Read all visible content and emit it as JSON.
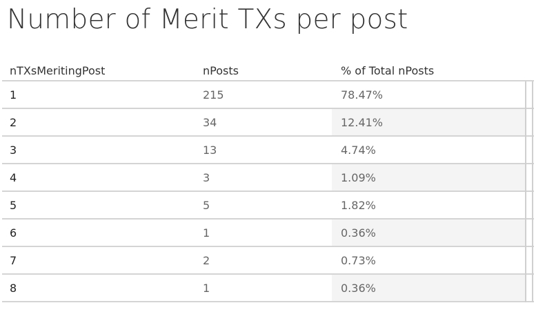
{
  "title": "Number of Merit TXs per post",
  "chart_data": {
    "type": "table",
    "title": "Number of Merit TXs per post",
    "columns": [
      "nTXsMeritingPost",
      "nPosts",
      "% of Total nPosts"
    ],
    "rows": [
      {
        "ntx": "1",
        "nposts": "215",
        "pct": "78.47%"
      },
      {
        "ntx": "2",
        "nposts": "34",
        "pct": "12.41%"
      },
      {
        "ntx": "3",
        "nposts": "13",
        "pct": "4.74%"
      },
      {
        "ntx": "4",
        "nposts": "3",
        "pct": "1.09%"
      },
      {
        "ntx": "5",
        "nposts": "5",
        "pct": "1.82%"
      },
      {
        "ntx": "6",
        "nposts": "1",
        "pct": "0.36%"
      },
      {
        "ntx": "7",
        "nposts": "2",
        "pct": "0.73%"
      },
      {
        "ntx": "8",
        "nposts": "1",
        "pct": "0.36%"
      }
    ],
    "shaded_rows": [
      1,
      3,
      5,
      7
    ],
    "shade_color": "#f4f4f4"
  }
}
